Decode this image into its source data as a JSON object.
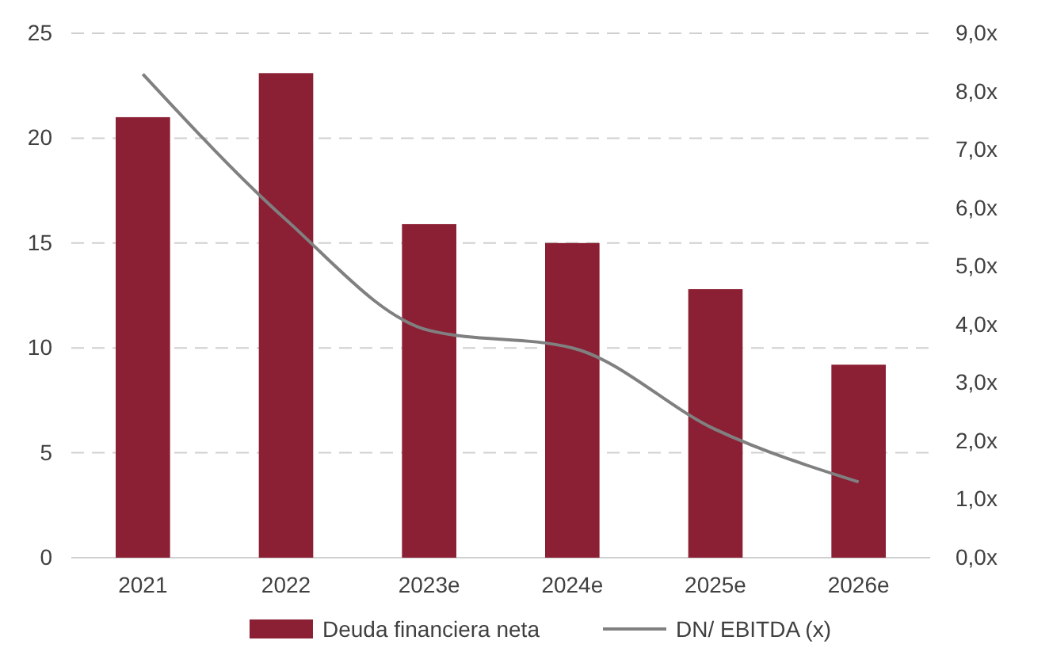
{
  "chart_data": {
    "type": "bar",
    "categories": [
      "2021",
      "2022",
      "2023e",
      "2024e",
      "2025e",
      "2026e"
    ],
    "series": [
      {
        "name": "Deuda financiera neta",
        "color": "#8b2035",
        "values": [
          21.0,
          23.1,
          15.9,
          15.0,
          12.8,
          9.2
        ]
      },
      {
        "name": "DN/ EBITDA (x)",
        "type": "line",
        "axis": "y2",
        "color": "#808080",
        "values": [
          8.3,
          5.8,
          3.9,
          3.6,
          2.2,
          1.3
        ]
      }
    ],
    "ylim": [
      0,
      25
    ],
    "yticks": [
      0,
      5,
      10,
      15,
      20,
      25
    ],
    "y2lim": [
      0,
      9
    ],
    "y2ticks": [
      {
        "value": 0,
        "label": "0,0x"
      },
      {
        "value": 1,
        "label": "1,0x"
      },
      {
        "value": 2,
        "label": "2,0x"
      },
      {
        "value": 3,
        "label": "3,0x"
      },
      {
        "value": 4,
        "label": "4,0x"
      },
      {
        "value": 5,
        "label": "5,0x"
      },
      {
        "value": 6,
        "label": "6,0x"
      },
      {
        "value": 7,
        "label": "7,0x"
      },
      {
        "value": 8,
        "label": "8,0x"
      },
      {
        "value": 9,
        "label": "9,0x"
      }
    ],
    "grid": "y",
    "legend": "bottom",
    "marker": "none",
    "line_style": "solid"
  }
}
